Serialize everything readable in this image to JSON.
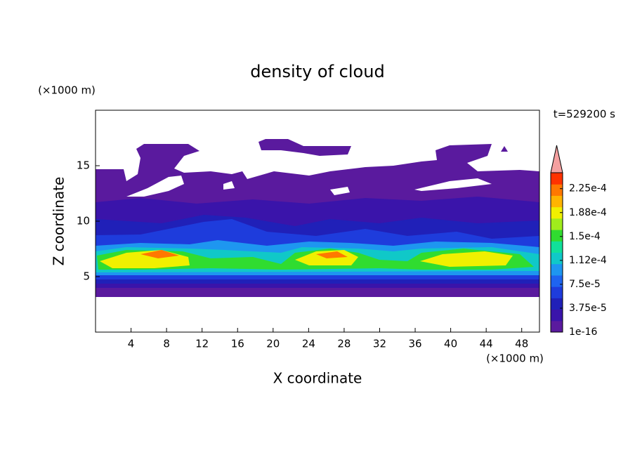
{
  "chart_data": {
    "type": "contour",
    "title": "density of cloud",
    "x_label": "X coordinate",
    "y_label": "Z coordinate",
    "x_unit": "(×1000 m)",
    "y_unit": "(×1000 m)",
    "annotation": "t=529200 s",
    "xlim": [
      0,
      50
    ],
    "ylim": [
      0,
      20
    ],
    "xticks": [
      4,
      8,
      12,
      16,
      20,
      24,
      28,
      32,
      36,
      40,
      44,
      48
    ],
    "yticks": [
      5,
      10,
      15
    ],
    "colorbar": {
      "lim": [
        1e-16,
        0.00025
      ],
      "ticks": [
        {
          "value": 1e-16,
          "label": "1e-16"
        },
        {
          "value": 3.75e-05,
          "label": "3.75e-5"
        },
        {
          "value": 7.5e-05,
          "label": "7.5e-5"
        },
        {
          "value": 0.0001125,
          "label": "1.12e-4"
        },
        {
          "value": 0.00015,
          "label": "1.5e-4"
        },
        {
          "value": 0.0001875,
          "label": "1.88e-4"
        },
        {
          "value": 0.000225,
          "label": "2.25e-4"
        }
      ],
      "colors": [
        "#5a1a9e",
        "#3a14aa",
        "#2020b8",
        "#1e3cdc",
        "#1e64f0",
        "#1e96f0",
        "#10c8c8",
        "#10e09a",
        "#30dc30",
        "#a0ec1c",
        "#f0f000",
        "#ffb400",
        "#ff7800",
        "#ff3200"
      ],
      "extend_color": "#f4a0a0"
    }
  }
}
